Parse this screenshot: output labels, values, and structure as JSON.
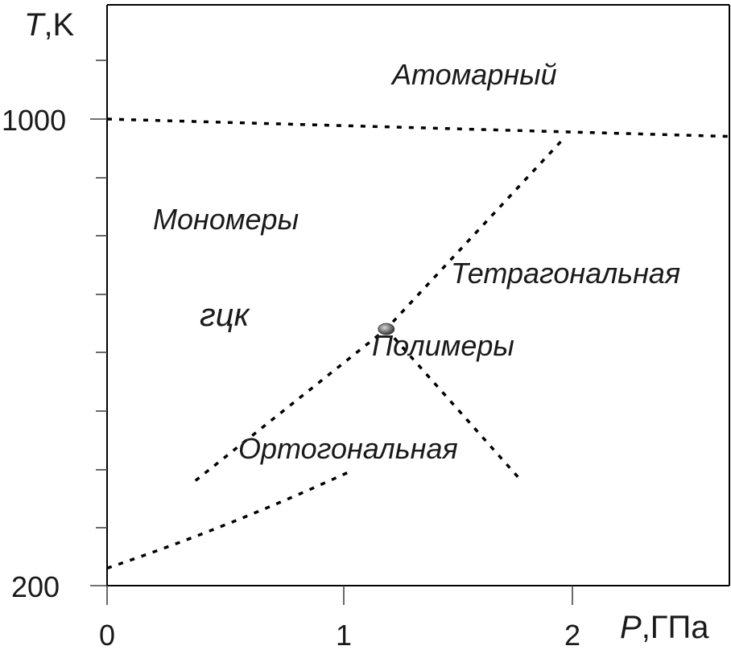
{
  "diagram": {
    "y_axis_title": {
      "symbol": "T",
      "unit": ",K"
    },
    "x_axis_title": {
      "symbol": "P",
      "unit": ",ГПа"
    },
    "y_tick_labels": [
      {
        "value": 1000,
        "label": "1000"
      },
      {
        "value": 200,
        "label": "200"
      }
    ],
    "x_tick_labels": [
      {
        "value": 0,
        "label": "0"
      },
      {
        "value": 1,
        "label": "1"
      },
      {
        "value": 2,
        "label": "2"
      }
    ],
    "regions": {
      "atomic": "Атомарный",
      "monomers": "Мономеры",
      "fcc": "гцк",
      "tetragonal": "Тетрагональная",
      "polymers": "Полимеры",
      "orthogonal": "Ортогональная"
    },
    "triple_point": {
      "P": 1.2,
      "T": 640
    },
    "boundaries": [
      {
        "name": "atomic-boundary",
        "points": [
          [
            0,
            1000
          ],
          [
            2.7,
            970
          ]
        ]
      },
      {
        "name": "fcc-tetragonal-boundary",
        "points": [
          [
            0.38,
            380
          ],
          [
            1.2,
            640
          ],
          [
            1.97,
            970
          ]
        ]
      },
      {
        "name": "tetragonal-orthogonal-boundary",
        "points": [
          [
            1.2,
            640
          ],
          [
            1.78,
            380
          ]
        ]
      },
      {
        "name": "fcc-orthogonal-boundary",
        "points": [
          [
            0,
            230
          ],
          [
            0.52,
            300
          ],
          [
            1.04,
            395
          ]
        ]
      }
    ]
  }
}
